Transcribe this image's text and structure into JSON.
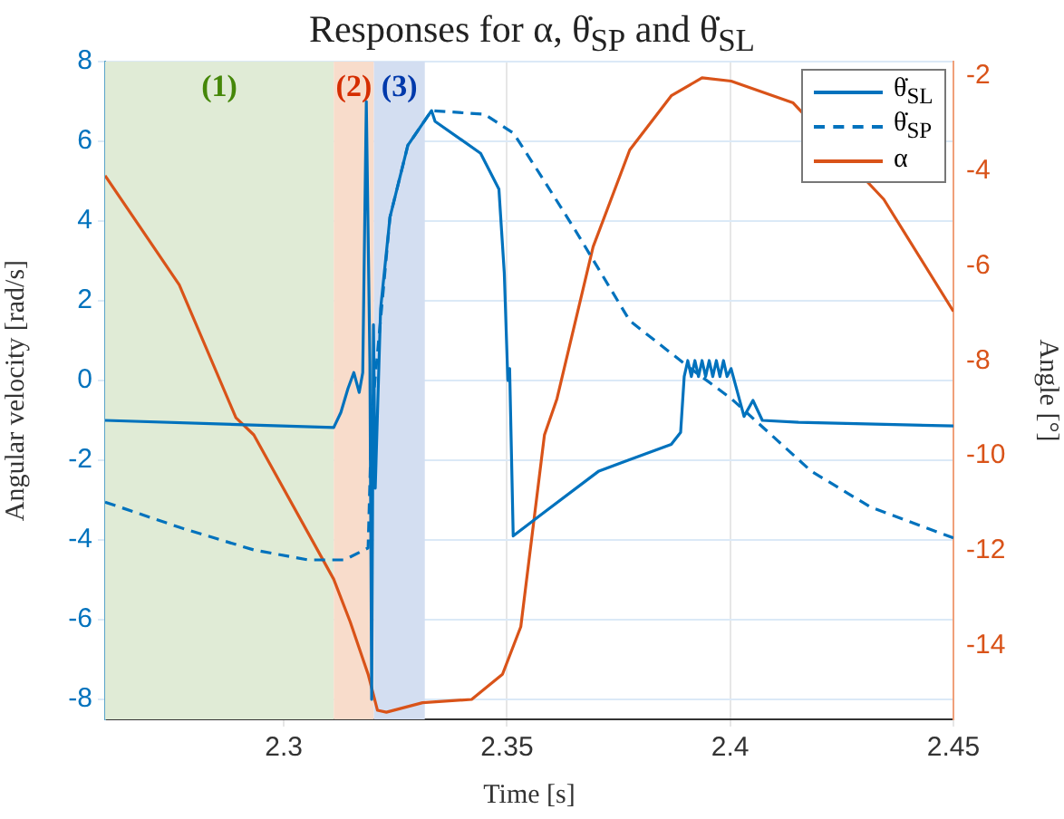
{
  "chart_data": {
    "type": "line",
    "title": "Responses for α, θ̇$_{SP}$ and θ̇$_{SL}$",
    "xlabel": "Time [s]",
    "ylabel": "Angular velocity [rad/s]",
    "y2label": "Angle [°]",
    "xlim": [
      2.26,
      2.45
    ],
    "xticks": [
      2.3,
      2.35,
      2.4,
      2.45
    ],
    "ylim": [
      -8.5,
      8
    ],
    "yticks": [
      -8,
      -6,
      -4,
      -2,
      0,
      2,
      4,
      6,
      8
    ],
    "y2lim": [
      -15.55,
      -1.7
    ],
    "y2ticks": [
      -14,
      -12,
      -10,
      -8,
      -6,
      -4,
      -2
    ],
    "grid": true,
    "legend": "top right",
    "marker": "none",
    "bands": [
      {
        "axis": "x",
        "from": 2.26,
        "to": 2.3112,
        "label": "(1)",
        "color": "#e0ebd6"
      },
      {
        "axis": "x",
        "from": 2.3112,
        "to": 2.3202,
        "label": "(2)",
        "color": "#f8dccb"
      },
      {
        "axis": "x",
        "from": 2.3202,
        "to": 2.3316,
        "label": "(3)",
        "color": "#d3def1"
      }
    ],
    "series": [
      {
        "name": "θ̇$_{SL}$",
        "color": "#0072bd",
        "line_style": "solid",
        "x": [
          2.26,
          2.3112,
          2.3128,
          2.3144,
          2.3157,
          2.3169,
          2.3177,
          2.3185,
          2.3193,
          2.3197,
          2.3201,
          2.3205,
          2.3217,
          2.3238,
          2.3278,
          2.3331,
          2.3339,
          2.3441,
          2.3482,
          2.3494,
          2.3502,
          2.3506,
          2.3514,
          2.3584,
          2.3706,
          2.3868,
          2.3889,
          2.3897,
          2.3905,
          2.3913,
          2.3921,
          2.3929,
          2.3937,
          2.3945,
          2.3953,
          2.3961,
          2.3969,
          2.3977,
          2.3985,
          2.3993,
          2.4002,
          2.4031,
          2.4051,
          2.4072,
          2.4153,
          2.45
        ],
        "values": [
          -1.0,
          -1.18,
          -0.8,
          -0.2,
          0.2,
          -0.3,
          0.2,
          7.0,
          0.45,
          -8.0,
          1.4,
          -2.7,
          1.8,
          4.1,
          5.9,
          6.77,
          6.5,
          5.7,
          4.8,
          2.7,
          0,
          0.3,
          -3.9,
          -3.3,
          -2.27,
          -1.6,
          -1.3,
          0.1,
          0.5,
          0.1,
          0.5,
          0.1,
          0.5,
          0.1,
          0.5,
          0.1,
          0.5,
          0.1,
          0.5,
          0.1,
          0.3,
          -0.9,
          -0.5,
          -1.0,
          -1.05,
          -1.14
        ]
      },
      {
        "name": "θ̇$_{SP}$",
        "color": "#0072bd",
        "line_style": "dashed",
        "x": [
          2.26,
          2.2771,
          2.2933,
          2.3055,
          2.3136,
          2.3189,
          2.3197,
          2.3238,
          2.3278,
          2.3331,
          2.345,
          2.3515,
          2.3584,
          2.3653,
          2.3775,
          2.3909,
          2.4002,
          2.4181,
          2.4315,
          2.45
        ],
        "values": [
          -3.05,
          -3.7,
          -4.25,
          -4.5,
          -4.5,
          -4.2,
          -0.9,
          4.1,
          5.9,
          6.77,
          6.68,
          6.2,
          5.0,
          3.77,
          1.5,
          0.32,
          -0.45,
          -2.27,
          -3.18,
          -3.95
        ]
      },
      {
        "name": "α",
        "color": "#d95319",
        "line_style": "solid",
        "axis": "y2",
        "x": [
          2.26,
          2.2766,
          2.2893,
          2.2933,
          2.3112,
          2.3149,
          2.3189,
          2.321,
          2.323,
          2.3311,
          2.3421,
          2.349,
          2.3531,
          2.3584,
          2.3612,
          2.3693,
          2.3775,
          2.3868,
          2.3937,
          2.4002,
          2.4141,
          2.4344,
          2.45
        ],
        "values": [
          -4.1,
          -6.4,
          -9.2,
          -9.56,
          -12.6,
          -13.5,
          -14.6,
          -15.36,
          -15.4,
          -15.2,
          -15.13,
          -14.6,
          -13.6,
          -9.56,
          -8.8,
          -5.6,
          -3.56,
          -2.42,
          -2.04,
          -2.11,
          -2.57,
          -4.6,
          -6.96
        ]
      }
    ]
  }
}
